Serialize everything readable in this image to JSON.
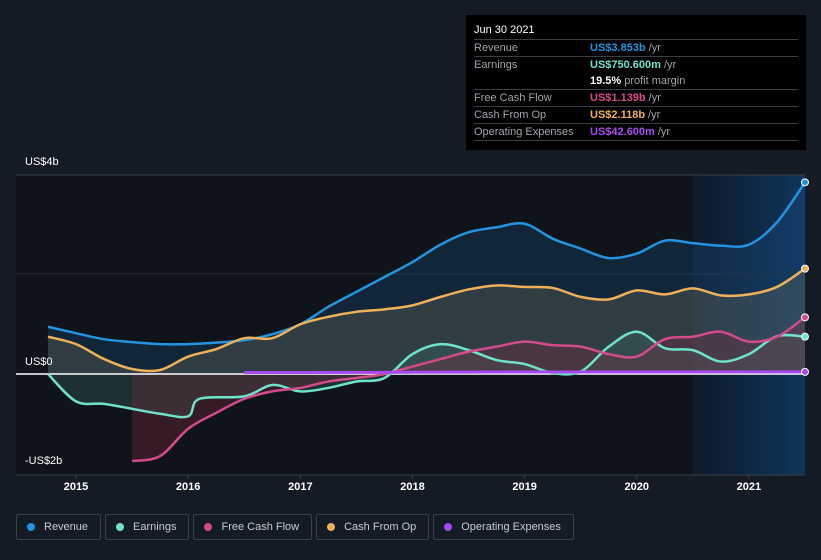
{
  "tooltip": {
    "date": "Jun 30 2021",
    "rows": [
      {
        "label": "Revenue",
        "value": "US$3.853b",
        "unit": "/yr",
        "color": "#2394df"
      },
      {
        "label": "Earnings",
        "value": "US$750.600m",
        "unit": "/yr",
        "color": "#6fe3c9"
      },
      {
        "label": "",
        "value": "19.5%",
        "unit": "profit margin",
        "color": "#ffffff"
      },
      {
        "label": "Free Cash Flow",
        "value": "US$1.139b",
        "unit": "/yr",
        "color": "#d44b8c"
      },
      {
        "label": "Cash From Op",
        "value": "US$2.118b",
        "unit": "/yr",
        "color": "#f0b05a"
      },
      {
        "label": "Operating Expenses",
        "value": "US$42.600m",
        "unit": "/yr",
        "color": "#a748f0"
      }
    ]
  },
  "chart_data": {
    "type": "line",
    "title": "",
    "xlabel": "",
    "ylabel": "",
    "y_tick_labels": [
      "US$4b",
      "US$0",
      "-US$2b"
    ],
    "x_tick_labels": [
      "2015",
      "2016",
      "2017",
      "2018",
      "2019",
      "2020",
      "2021"
    ],
    "xlim": [
      2014.75,
      2021.5
    ],
    "ylim": [
      -2.0,
      4.0
    ],
    "y_unit": "US$ billions",
    "highlight_start": 2020.5,
    "series": [
      {
        "name": "Revenue",
        "color": "#2394df",
        "x": [
          2014.75,
          2015.0,
          2015.25,
          2015.5,
          2015.75,
          2016.0,
          2016.25,
          2016.5,
          2016.75,
          2017.0,
          2017.25,
          2017.5,
          2017.75,
          2018.0,
          2018.25,
          2018.5,
          2018.75,
          2019.0,
          2019.25,
          2019.5,
          2019.75,
          2020.0,
          2020.25,
          2020.5,
          2020.75,
          2021.0,
          2021.25,
          2021.5
        ],
        "values": [
          0.95,
          0.82,
          0.7,
          0.64,
          0.6,
          0.6,
          0.63,
          0.68,
          0.8,
          1.0,
          1.35,
          1.65,
          1.95,
          2.25,
          2.6,
          2.85,
          2.95,
          3.02,
          2.72,
          2.52,
          2.33,
          2.42,
          2.68,
          2.63,
          2.58,
          2.6,
          3.05,
          3.853
        ]
      },
      {
        "name": "Cash From Op",
        "color": "#f0b05a",
        "x": [
          2014.75,
          2015.0,
          2015.25,
          2015.5,
          2015.75,
          2016.0,
          2016.25,
          2016.5,
          2016.75,
          2017.0,
          2017.25,
          2017.5,
          2017.75,
          2018.0,
          2018.25,
          2018.5,
          2018.75,
          2019.0,
          2019.25,
          2019.5,
          2019.75,
          2020.0,
          2020.25,
          2020.5,
          2020.75,
          2021.0,
          2021.25,
          2021.5
        ],
        "values": [
          0.75,
          0.6,
          0.3,
          0.1,
          0.08,
          0.35,
          0.5,
          0.72,
          0.72,
          1.0,
          1.15,
          1.25,
          1.3,
          1.38,
          1.55,
          1.7,
          1.78,
          1.75,
          1.73,
          1.55,
          1.5,
          1.68,
          1.6,
          1.72,
          1.58,
          1.6,
          1.75,
          2.118
        ]
      },
      {
        "name": "Earnings",
        "color": "#6fe3c9",
        "x": [
          2014.75,
          2015.0,
          2015.25,
          2015.5,
          2015.75,
          2016.0,
          2016.1,
          2016.5,
          2016.75,
          2017.0,
          2017.25,
          2017.5,
          2017.75,
          2018.0,
          2018.25,
          2018.5,
          2018.75,
          2019.0,
          2019.25,
          2019.5,
          2019.75,
          2020.0,
          2020.25,
          2020.5,
          2020.75,
          2021.0,
          2021.25,
          2021.5
        ],
        "values": [
          0.0,
          -0.55,
          -0.6,
          -0.7,
          -0.8,
          -0.85,
          -0.5,
          -0.45,
          -0.22,
          -0.35,
          -0.28,
          -0.15,
          -0.08,
          0.4,
          0.6,
          0.48,
          0.28,
          0.2,
          0.02,
          0.05,
          0.55,
          0.85,
          0.52,
          0.48,
          0.25,
          0.4,
          0.76,
          0.7506
        ]
      },
      {
        "name": "Free Cash Flow",
        "color": "#d44b8c",
        "x": [
          2015.5,
          2015.75,
          2016.0,
          2016.25,
          2016.5,
          2016.75,
          2017.0,
          2017.25,
          2017.5,
          2017.75,
          2018.0,
          2018.25,
          2018.5,
          2018.75,
          2019.0,
          2019.25,
          2019.5,
          2019.75,
          2020.0,
          2020.25,
          2020.5,
          2020.75,
          2021.0,
          2021.25,
          2021.5
        ],
        "values": [
          -1.75,
          -1.65,
          -1.1,
          -0.78,
          -0.5,
          -0.35,
          -0.28,
          -0.15,
          -0.08,
          0.0,
          0.15,
          0.3,
          0.45,
          0.55,
          0.65,
          0.58,
          0.55,
          0.4,
          0.35,
          0.7,
          0.75,
          0.85,
          0.65,
          0.75,
          1.139
        ]
      },
      {
        "name": "Operating Expenses",
        "color": "#a748f0",
        "x": [
          2016.5,
          2017.0,
          2018.0,
          2019.0,
          2020.0,
          2021.0,
          2021.5
        ],
        "values": [
          0.03,
          0.03,
          0.035,
          0.04,
          0.04,
          0.042,
          0.0426
        ]
      }
    ],
    "legend": [
      "Revenue",
      "Earnings",
      "Free Cash Flow",
      "Cash From Op",
      "Operating Expenses"
    ],
    "legend_position": "bottom-left",
    "grid": true
  }
}
